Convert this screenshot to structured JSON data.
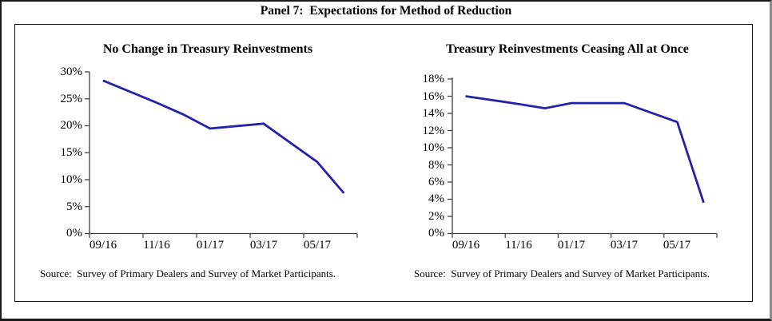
{
  "panel_title": "Panel 7:  Expectations for Method of Reduction",
  "chart_data": [
    {
      "type": "line",
      "title": "No Change in Treasury Reinvestments",
      "x": [
        "09/16",
        "11/16",
        "12/16",
        "01/17",
        "03/17",
        "05/17",
        "06/17"
      ],
      "x_month_offsets": [
        0,
        2,
        3,
        4,
        6,
        8,
        9
      ],
      "values": [
        28.4,
        24.3,
        22.1,
        19.5,
        20.4,
        13.3,
        7.5
      ],
      "x_tick_labels": [
        "09/16",
        "11/16",
        "01/17",
        "03/17",
        "05/17"
      ],
      "y_tick_labels": [
        "30%",
        "25%",
        "20%",
        "15%",
        "10%",
        "5%",
        "0%"
      ],
      "ylim": [
        0,
        30
      ],
      "y_step": 5,
      "xlabel": "",
      "ylabel": "",
      "grid": false,
      "legend": "none",
      "line_color": "#2222aa",
      "source": "Source:  Survey of Primary Dealers and Survey of Market Participants."
    },
    {
      "type": "line",
      "title": "Treasury Reinvestments Ceasing All at Once",
      "x": [
        "09/16",
        "11/16",
        "12/16",
        "01/17",
        "03/17",
        "05/17",
        "06/17"
      ],
      "x_month_offsets": [
        0,
        2,
        3,
        4,
        6,
        8,
        9
      ],
      "values": [
        16.0,
        15.1,
        14.6,
        15.2,
        15.2,
        13.0,
        3.6
      ],
      "x_tick_labels": [
        "09/16",
        "11/16",
        "01/17",
        "03/17",
        "05/17"
      ],
      "y_tick_labels": [
        "18%",
        "16%",
        "14%",
        "12%",
        "10%",
        "8%",
        "6%",
        "4%",
        "2%",
        "0%"
      ],
      "ylim": [
        0,
        18
      ],
      "y_step": 2,
      "xlabel": "",
      "ylabel": "",
      "grid": false,
      "legend": "none",
      "line_color": "#2222aa",
      "source": "Source:  Survey of Primary Dealers and Survey of Market Participants."
    }
  ]
}
